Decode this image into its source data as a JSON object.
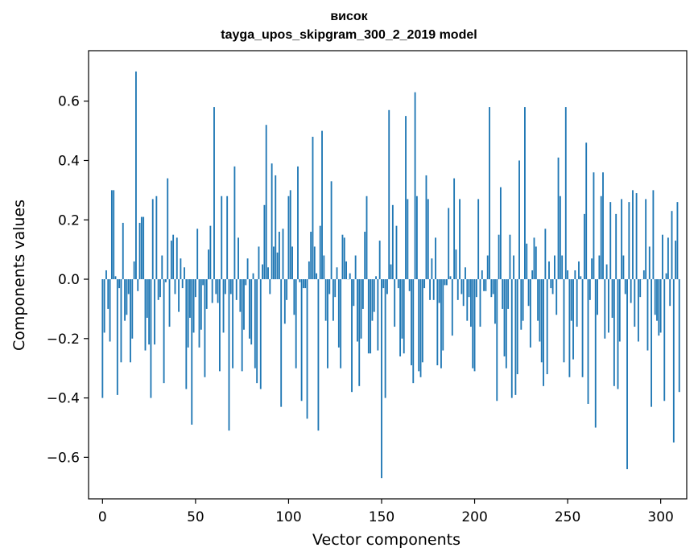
{
  "chart_data": {
    "type": "bar",
    "title_line1": "висок",
    "title_line2": "tayga_upos_skipgram_300_2_2019 model",
    "xlabel": "Vector components",
    "ylabel": "Components values",
    "xlim": [
      -7.5,
      314
    ],
    "ylim": [
      -0.74,
      0.77
    ],
    "xticks": [
      0,
      50,
      100,
      150,
      200,
      250,
      300
    ],
    "xtick_labels": [
      "0",
      "50",
      "100",
      "150",
      "200",
      "250",
      "300"
    ],
    "yticks": [
      -0.6,
      -0.4,
      -0.2,
      0.0,
      0.2,
      0.4,
      0.6
    ],
    "ytick_labels": [
      "−0.6",
      "−0.4",
      "−0.2",
      "0.0",
      "0.2",
      "0.4",
      "0.6"
    ],
    "bar_color": "#1f77b4",
    "grid": false,
    "values": [
      -0.4,
      -0.18,
      0.03,
      -0.1,
      -0.21,
      0.3,
      0.3,
      0.01,
      -0.39,
      -0.03,
      -0.28,
      0.19,
      -0.14,
      -0.12,
      -0.05,
      -0.28,
      -0.2,
      0.06,
      0.7,
      -0.04,
      0.19,
      0.21,
      0.21,
      -0.24,
      -0.13,
      -0.22,
      -0.4,
      0.27,
      -0.22,
      0.28,
      -0.07,
      -0.06,
      0.08,
      -0.35,
      -0.01,
      0.34,
      -0.16,
      0.13,
      0.15,
      -0.05,
      0.14,
      -0.11,
      0.07,
      -0.03,
      0.04,
      -0.37,
      -0.23,
      -0.13,
      -0.49,
      -0.18,
      -0.06,
      0.17,
      -0.23,
      -0.17,
      -0.02,
      -0.33,
      -0.1,
      0.1,
      0.18,
      -0.08,
      0.58,
      -0.05,
      -0.08,
      -0.31,
      0.28,
      -0.18,
      -0.05,
      0.28,
      -0.51,
      -0.05,
      -0.3,
      0.38,
      -0.07,
      0.14,
      -0.11,
      -0.31,
      -0.17,
      -0.02,
      0.07,
      -0.2,
      -0.22,
      0.02,
      -0.3,
      -0.35,
      0.11,
      -0.37,
      0.05,
      0.25,
      0.52,
      0.04,
      -0.05,
      0.39,
      0.11,
      0.35,
      0.09,
      0.16,
      -0.43,
      0.17,
      -0.15,
      -0.07,
      0.28,
      0.3,
      0.11,
      -0.12,
      -0.3,
      0.38,
      -0.01,
      -0.41,
      -0.03,
      -0.03,
      -0.47,
      0.06,
      0.16,
      0.48,
      0.11,
      0.02,
      -0.51,
      0.18,
      0.5,
      0.08,
      -0.14,
      -0.3,
      -0.05,
      0.33,
      -0.14,
      -0.06,
      0.04,
      -0.23,
      -0.3,
      0.15,
      0.14,
      0.06,
      0.0,
      0.02,
      -0.38,
      -0.09,
      0.08,
      -0.21,
      -0.36,
      -0.2,
      -0.1,
      0.16,
      0.28,
      -0.25,
      -0.25,
      -0.14,
      -0.11,
      0.01,
      -0.24,
      0.13,
      -0.67,
      -0.03,
      -0.4,
      -0.05,
      0.57,
      0.05,
      0.25,
      -0.16,
      0.18,
      -0.03,
      -0.26,
      -0.2,
      -0.25,
      0.55,
      0.27,
      -0.04,
      -0.29,
      -0.35,
      0.63,
      0.28,
      -0.31,
      -0.33,
      -0.28,
      -0.03,
      0.35,
      0.27,
      -0.07,
      0.07,
      -0.07,
      0.14,
      -0.29,
      -0.08,
      -0.3,
      -0.24,
      -0.02,
      -0.02,
      0.24,
      0.01,
      -0.19,
      0.34,
      0.1,
      -0.07,
      0.27,
      -0.05,
      -0.09,
      0.04,
      -0.14,
      -0.06,
      -0.16,
      -0.3,
      -0.31,
      -0.06,
      0.27,
      -0.16,
      0.03,
      -0.04,
      -0.04,
      0.08,
      0.58,
      -0.06,
      -0.05,
      -0.15,
      -0.41,
      0.15,
      0.31,
      -0.1,
      -0.26,
      -0.3,
      -0.1,
      0.15,
      -0.4,
      0.08,
      -0.39,
      -0.32,
      0.4,
      -0.17,
      -0.14,
      0.58,
      0.12,
      -0.09,
      -0.23,
      0.03,
      0.14,
      0.11,
      -0.14,
      -0.21,
      -0.28,
      -0.36,
      0.17,
      -0.32,
      0.06,
      -0.03,
      -0.05,
      0.08,
      -0.12,
      0.41,
      0.28,
      0.08,
      -0.28,
      0.58,
      0.03,
      -0.33,
      -0.14,
      -0.27,
      0.03,
      -0.16,
      0.06,
      0.01,
      -0.33,
      0.22,
      0.46,
      -0.42,
      -0.07,
      0.07,
      0.36,
      -0.5,
      -0.12,
      0.08,
      0.28,
      0.36,
      -0.2,
      0.05,
      -0.18,
      0.26,
      -0.13,
      -0.36,
      0.22,
      -0.37,
      -0.21,
      0.27,
      0.08,
      -0.05,
      -0.64,
      0.26,
      -0.08,
      0.3,
      -0.16,
      0.29,
      -0.21,
      -0.06,
      0.0,
      0.03,
      0.27,
      -0.24,
      0.11,
      -0.43,
      0.3,
      -0.12,
      -0.14,
      -0.19,
      -0.18,
      0.15,
      -0.41,
      0.02,
      0.14,
      -0.09,
      0.23,
      -0.55,
      0.13,
      0.26,
      -0.38
    ]
  }
}
